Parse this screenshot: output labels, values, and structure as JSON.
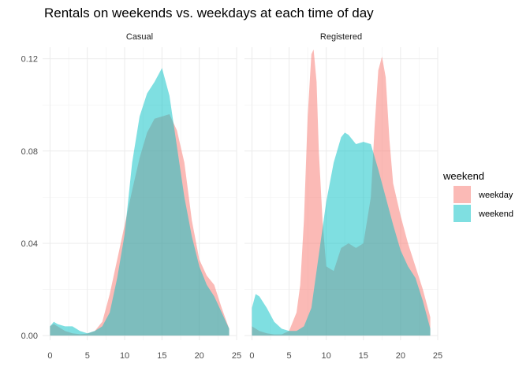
{
  "chart_data": {
    "type": "area",
    "title": "Rentals on weekends vs. weekdays at each time of day",
    "xlabel": "",
    "ylabel": "",
    "xlim": [
      -1,
      25
    ],
    "ylim": [
      -0.002,
      0.125
    ],
    "x_ticks": [
      0,
      5,
      10,
      15,
      20,
      25
    ],
    "y_ticks": [
      0.0,
      0.04,
      0.08,
      0.12
    ],
    "y_tick_labels": [
      "0.00",
      "0.04",
      "0.08",
      "0.12"
    ],
    "grid": true,
    "legend": {
      "title": "weekend",
      "placement": "right",
      "entries": [
        {
          "label": "weekday",
          "color": "#F8766D"
        },
        {
          "label": "weekend",
          "color": "#00BFC4"
        }
      ]
    },
    "panels": [
      {
        "label": "Casual",
        "series": [
          {
            "name": "weekday",
            "color": "#F8766D",
            "points": [
              [
                0,
                0.004
              ],
              [
                0.5,
                0.005
              ],
              [
                1,
                0.004
              ],
              [
                2,
                0.002
              ],
              [
                3,
                0.001
              ],
              [
                4,
                0.0006
              ],
              [
                5,
                0.0008
              ],
              [
                6,
                0.002
              ],
              [
                7,
                0.006
              ],
              [
                8,
                0.018
              ],
              [
                9,
                0.033
              ],
              [
                10,
                0.048
              ],
              [
                11,
                0.063
              ],
              [
                12,
                0.077
              ],
              [
                13,
                0.088
              ],
              [
                14,
                0.094
              ],
              [
                15,
                0.095
              ],
              [
                16,
                0.096
              ],
              [
                17,
                0.089
              ],
              [
                18,
                0.075
              ],
              [
                19,
                0.05
              ],
              [
                20,
                0.033
              ],
              [
                21,
                0.026
              ],
              [
                22,
                0.022
              ],
              [
                23,
                0.012
              ],
              [
                24,
                0.003
              ]
            ]
          },
          {
            "name": "weekend",
            "color": "#00BFC4",
            "points": [
              [
                0,
                0.004
              ],
              [
                0.5,
                0.006
              ],
              [
                1,
                0.005
              ],
              [
                2,
                0.004
              ],
              [
                3,
                0.004
              ],
              [
                4,
                0.002
              ],
              [
                5,
                0.001
              ],
              [
                6,
                0.002
              ],
              [
                7,
                0.004
              ],
              [
                8,
                0.01
              ],
              [
                9,
                0.025
              ],
              [
                10,
                0.044
              ],
              [
                11,
                0.075
              ],
              [
                12,
                0.095
              ],
              [
                13,
                0.105
              ],
              [
                14,
                0.11
              ],
              [
                15,
                0.116
              ],
              [
                16,
                0.104
              ],
              [
                17,
                0.082
              ],
              [
                18,
                0.06
              ],
              [
                19,
                0.043
              ],
              [
                20,
                0.03
              ],
              [
                21,
                0.022
              ],
              [
                22,
                0.017
              ],
              [
                23,
                0.01
              ],
              [
                24,
                0.003
              ]
            ]
          }
        ]
      },
      {
        "label": "Registered",
        "series": [
          {
            "name": "weekday",
            "color": "#F8766D",
            "points": [
              [
                0,
                0.004
              ],
              [
                1,
                0.002
              ],
              [
                2,
                0.001
              ],
              [
                3,
                0.0005
              ],
              [
                4,
                0.0005
              ],
              [
                5,
                0.002
              ],
              [
                6,
                0.01
              ],
              [
                6.5,
                0.022
              ],
              [
                7,
                0.05
              ],
              [
                7.5,
                0.095
              ],
              [
                8,
                0.122
              ],
              [
                8.3,
                0.124
              ],
              [
                8.7,
                0.11
              ],
              [
                9,
                0.08
              ],
              [
                9.5,
                0.05
              ],
              [
                10,
                0.03
              ],
              [
                11,
                0.028
              ],
              [
                12,
                0.038
              ],
              [
                13,
                0.04
              ],
              [
                14,
                0.038
              ],
              [
                15,
                0.04
              ],
              [
                16,
                0.06
              ],
              [
                16.5,
                0.09
              ],
              [
                17,
                0.115
              ],
              [
                17.5,
                0.121
              ],
              [
                18,
                0.112
              ],
              [
                18.5,
                0.085
              ],
              [
                19,
                0.066
              ],
              [
                20,
                0.052
              ],
              [
                21,
                0.04
              ],
              [
                22,
                0.03
              ],
              [
                23,
                0.02
              ],
              [
                24,
                0.008
              ]
            ]
          },
          {
            "name": "weekend",
            "color": "#00BFC4",
            "points": [
              [
                0,
                0.012
              ],
              [
                0.5,
                0.018
              ],
              [
                1,
                0.017
              ],
              [
                2,
                0.012
              ],
              [
                3,
                0.006
              ],
              [
                4,
                0.003
              ],
              [
                5,
                0.002
              ],
              [
                6,
                0.002
              ],
              [
                7,
                0.004
              ],
              [
                8,
                0.012
              ],
              [
                9,
                0.035
              ],
              [
                10,
                0.058
              ],
              [
                11,
                0.075
              ],
              [
                12,
                0.086
              ],
              [
                12.5,
                0.088
              ],
              [
                13,
                0.087
              ],
              [
                14,
                0.083
              ],
              [
                15,
                0.084
              ],
              [
                16,
                0.083
              ],
              [
                17,
                0.072
              ],
              [
                18,
                0.06
              ],
              [
                19,
                0.048
              ],
              [
                20,
                0.037
              ],
              [
                21,
                0.03
              ],
              [
                22,
                0.025
              ],
              [
                23,
                0.015
              ],
              [
                24,
                0.003
              ]
            ]
          }
        ]
      }
    ]
  }
}
